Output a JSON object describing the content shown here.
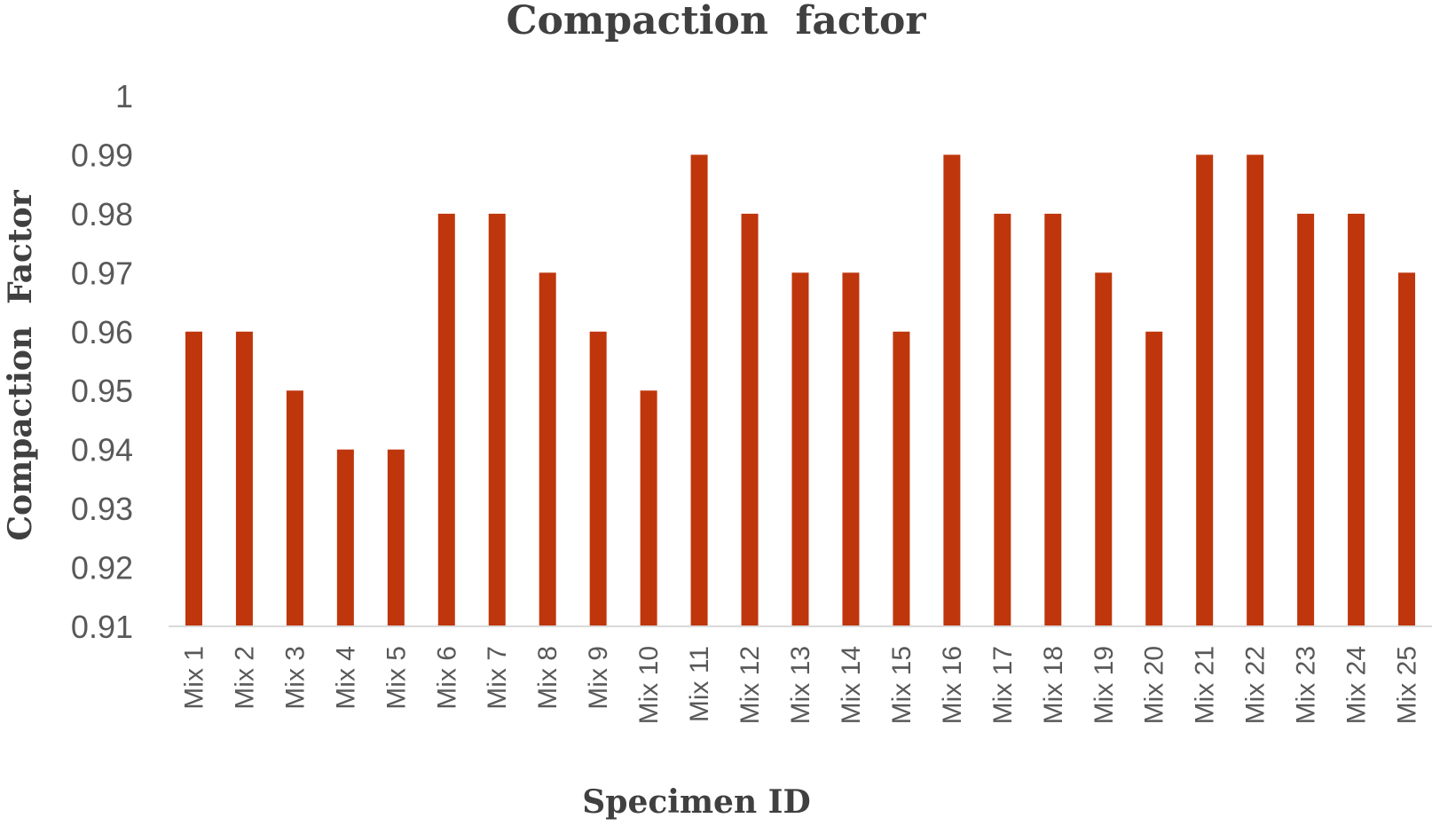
{
  "chart_data": {
    "type": "bar",
    "title": "Compaction  factor",
    "xlabel": "Specimen ID",
    "ylabel": "Compaction  Factor",
    "ylim": [
      0.91,
      1
    ],
    "yticks": [
      "0.91",
      "0.92",
      "0.93",
      "0.94",
      "0.95",
      "0.96",
      "0.97",
      "0.98",
      "0.99",
      "1"
    ],
    "grid": false,
    "legend": "none",
    "bar_color": "#bf360c",
    "categories": [
      "Mix 1",
      "Mix 2",
      "Mix 3",
      "Mix 4",
      "Mix 5",
      "Mix 6",
      "Mix 7",
      "Mix 8",
      "Mix 9",
      "Mix 10",
      "Mix 11",
      "Mix 12",
      "Mix 13",
      "Mix 14",
      "Mix 15",
      "Mix 16",
      "Mix 17",
      "Mix 18",
      "Mix 19",
      "Mix 20",
      "Mix 21",
      "Mix 22",
      "Mix 23",
      "Mix 24",
      "Mix 25"
    ],
    "values": [
      0.96,
      0.96,
      0.95,
      0.94,
      0.94,
      0.98,
      0.98,
      0.97,
      0.96,
      0.95,
      0.99,
      0.98,
      0.97,
      0.97,
      0.96,
      0.99,
      0.98,
      0.98,
      0.97,
      0.96,
      0.99,
      0.99,
      0.98,
      0.98,
      0.97
    ]
  }
}
